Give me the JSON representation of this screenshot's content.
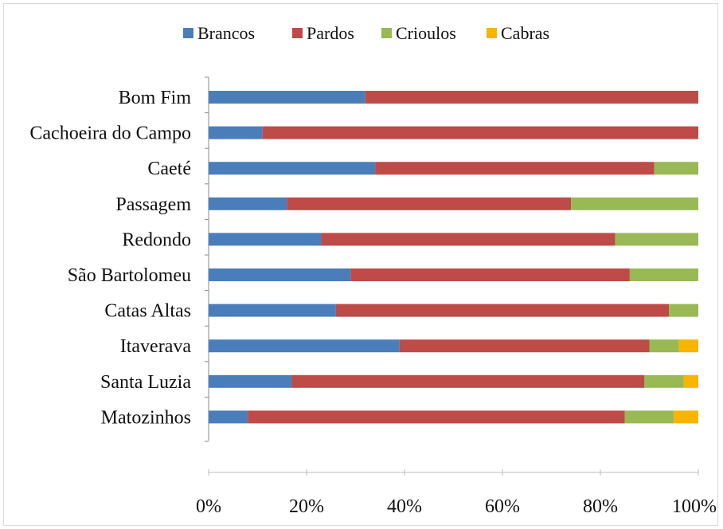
{
  "chart_data": {
    "type": "bar",
    "orientation": "horizontal",
    "stacked": true,
    "normalized": true,
    "categories": [
      "Bom Fim",
      "Cachoeira do Campo",
      "Caeté",
      "Passagem",
      "Redondo",
      "São Bartolomeu",
      "Catas Altas",
      "Itaverava",
      "Santa Luzia",
      "Matozinhos"
    ],
    "series": [
      {
        "name": "Brancos",
        "color": "#4a7ebb",
        "values": [
          32,
          11,
          34,
          16,
          23,
          29,
          26,
          39,
          17,
          8
        ]
      },
      {
        "name": "Pardos",
        "color": "#be4b48",
        "values": [
          68,
          89,
          57,
          58,
          60,
          57,
          68,
          51,
          72,
          77
        ]
      },
      {
        "name": "Crioulos",
        "color": "#98b954",
        "values": [
          0,
          0,
          9,
          26,
          17,
          14,
          6,
          6,
          8,
          10
        ]
      },
      {
        "name": "Cabras",
        "color": "#f7b500",
        "values": [
          0,
          0,
          0,
          0,
          0,
          0,
          0,
          4,
          3,
          5
        ]
      }
    ],
    "xlim": [
      0,
      100
    ],
    "x_ticks": [
      "0%",
      "20%",
      "40%",
      "60%",
      "80%",
      "100%"
    ],
    "grid": false,
    "legend_position": "top",
    "title": "",
    "xlabel": "",
    "ylabel": ""
  }
}
